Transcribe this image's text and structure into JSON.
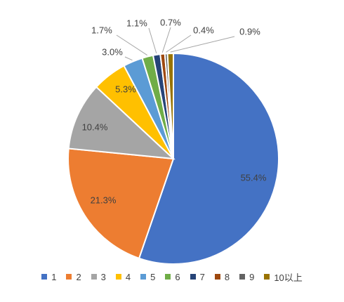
{
  "chart_data": {
    "type": "pie",
    "categories": [
      "1",
      "2",
      "3",
      "4",
      "5",
      "6",
      "7",
      "8",
      "9",
      "10以上"
    ],
    "values": [
      55.4,
      21.3,
      10.4,
      5.3,
      3.0,
      1.7,
      1.1,
      0.7,
      0.4,
      0.9
    ],
    "data_labels": [
      "55.4%",
      "21.3%",
      "10.4%",
      "5.3%",
      "3.0%",
      "1.7%",
      "1.1%",
      "0.7%",
      "0.4%",
      "0.9%"
    ],
    "colors": [
      "#4472C4",
      "#ED7D31",
      "#A5A5A5",
      "#FFC000",
      "#5B9BD5",
      "#70AD47",
      "#264478",
      "#9E480E",
      "#636363",
      "#997300"
    ],
    "legend_placement": "bottom",
    "start": "12-o'clock",
    "direction": "clockwise"
  }
}
